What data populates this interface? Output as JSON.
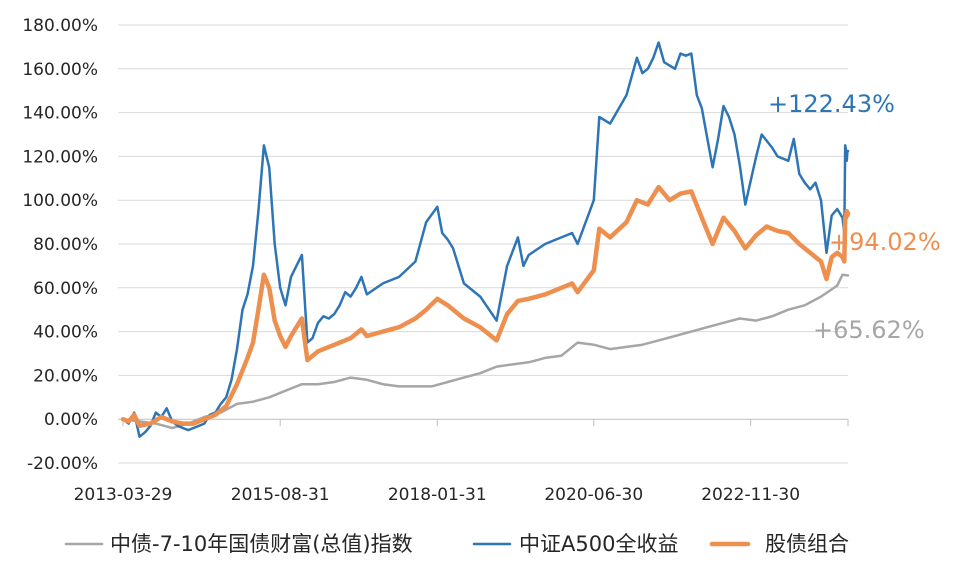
{
  "chart_data": {
    "type": "line",
    "title": "",
    "xlabel": "",
    "ylabel": "",
    "ylim": [
      -20,
      180
    ],
    "xlim": [
      "2013-03-01",
      "2024-05-31"
    ],
    "grid": "horizontal",
    "legend_position": "bottom",
    "yticks": [
      -20,
      0,
      20,
      40,
      60,
      80,
      100,
      120,
      140,
      160,
      180
    ],
    "ytick_labels": [
      "-20.00%",
      "0.00%",
      "20.00%",
      "40.00%",
      "60.00%",
      "80.00%",
      "100.00%",
      "120.00%",
      "140.00%",
      "160.00%",
      "180.00%"
    ],
    "xticks": [
      "2013-03-29",
      "2015-08-31",
      "2018-01-31",
      "2020-06-30",
      "2022-11-30"
    ],
    "series": [
      {
        "name": "中债-7-10年国债财富(总值)指数",
        "color": "#a6a6a6",
        "end_label": "+65.62%",
        "points": [
          [
            "2013-03-29",
            0
          ],
          [
            "2013-06-30",
            -1
          ],
          [
            "2013-09-30",
            -2
          ],
          [
            "2013-12-31",
            -4
          ],
          [
            "2014-03-31",
            -2
          ],
          [
            "2014-06-30",
            1
          ],
          [
            "2014-09-30",
            3
          ],
          [
            "2014-12-31",
            7
          ],
          [
            "2015-03-31",
            8
          ],
          [
            "2015-06-30",
            10
          ],
          [
            "2015-09-30",
            13
          ],
          [
            "2015-12-31",
            16
          ],
          [
            "2016-03-31",
            16
          ],
          [
            "2016-06-30",
            17
          ],
          [
            "2016-09-30",
            19
          ],
          [
            "2016-12-31",
            18
          ],
          [
            "2017-03-31",
            16
          ],
          [
            "2017-06-30",
            15
          ],
          [
            "2017-09-30",
            15
          ],
          [
            "2017-12-31",
            15
          ],
          [
            "2018-03-31",
            17
          ],
          [
            "2018-06-30",
            19
          ],
          [
            "2018-09-30",
            21
          ],
          [
            "2018-12-31",
            24
          ],
          [
            "2019-03-31",
            25
          ],
          [
            "2019-06-30",
            26
          ],
          [
            "2019-09-30",
            28
          ],
          [
            "2019-12-31",
            29
          ],
          [
            "2020-03-31",
            35
          ],
          [
            "2020-06-30",
            34
          ],
          [
            "2020-09-30",
            32
          ],
          [
            "2020-12-31",
            33
          ],
          [
            "2021-03-31",
            34
          ],
          [
            "2021-06-30",
            36
          ],
          [
            "2021-09-30",
            38
          ],
          [
            "2021-12-31",
            40
          ],
          [
            "2022-03-31",
            42
          ],
          [
            "2022-06-30",
            44
          ],
          [
            "2022-09-30",
            46
          ],
          [
            "2022-12-31",
            45
          ],
          [
            "2023-03-31",
            47
          ],
          [
            "2023-06-30",
            50
          ],
          [
            "2023-09-30",
            52
          ],
          [
            "2023-12-31",
            56
          ],
          [
            "2024-03-31",
            61
          ],
          [
            "2024-04-30",
            66
          ],
          [
            "2024-05-31",
            65.62
          ]
        ]
      },
      {
        "name": "中证A500全收益",
        "color": "#2e75b6",
        "end_label": "+122.43%",
        "points": [
          [
            "2013-03-29",
            0
          ],
          [
            "2013-04-30",
            -2
          ],
          [
            "2013-05-31",
            3
          ],
          [
            "2013-06-30",
            -8
          ],
          [
            "2013-07-31",
            -6
          ],
          [
            "2013-08-31",
            -3
          ],
          [
            "2013-09-30",
            3
          ],
          [
            "2013-10-31",
            1
          ],
          [
            "2013-11-30",
            5
          ],
          [
            "2013-12-31",
            -1
          ],
          [
            "2014-01-31",
            -3
          ],
          [
            "2014-02-28",
            -4
          ],
          [
            "2014-03-31",
            -5
          ],
          [
            "2014-04-30",
            -4
          ],
          [
            "2014-05-31",
            -3
          ],
          [
            "2014-06-30",
            -2
          ],
          [
            "2014-07-31",
            2
          ],
          [
            "2014-08-31",
            3
          ],
          [
            "2014-09-30",
            7
          ],
          [
            "2014-10-31",
            10
          ],
          [
            "2014-11-30",
            18
          ],
          [
            "2014-12-31",
            32
          ],
          [
            "2015-01-31",
            50
          ],
          [
            "2015-02-28",
            57
          ],
          [
            "2015-03-31",
            70
          ],
          [
            "2015-04-30",
            95
          ],
          [
            "2015-05-31",
            125
          ],
          [
            "2015-06-30",
            115
          ],
          [
            "2015-07-31",
            80
          ],
          [
            "2015-08-31",
            60
          ],
          [
            "2015-09-30",
            52
          ],
          [
            "2015-10-31",
            65
          ],
          [
            "2015-11-30",
            70
          ],
          [
            "2015-12-31",
            75
          ],
          [
            "2016-01-31",
            35
          ],
          [
            "2016-02-29",
            37
          ],
          [
            "2016-03-31",
            44
          ],
          [
            "2016-04-30",
            47
          ],
          [
            "2016-05-31",
            46
          ],
          [
            "2016-06-30",
            48
          ],
          [
            "2016-07-31",
            52
          ],
          [
            "2016-08-31",
            58
          ],
          [
            "2016-09-30",
            56
          ],
          [
            "2016-10-31",
            60
          ],
          [
            "2016-11-30",
            65
          ],
          [
            "2016-12-31",
            57
          ],
          [
            "2017-03-31",
            62
          ],
          [
            "2017-06-30",
            65
          ],
          [
            "2017-09-30",
            72
          ],
          [
            "2017-11-30",
            90
          ],
          [
            "2018-01-31",
            97
          ],
          [
            "2018-02-28",
            85
          ],
          [
            "2018-03-31",
            82
          ],
          [
            "2018-04-30",
            78
          ],
          [
            "2018-06-30",
            62
          ],
          [
            "2018-09-30",
            56
          ],
          [
            "2018-12-31",
            45
          ],
          [
            "2019-02-28",
            70
          ],
          [
            "2019-04-30",
            83
          ],
          [
            "2019-05-31",
            70
          ],
          [
            "2019-06-30",
            75
          ],
          [
            "2019-09-30",
            80
          ],
          [
            "2019-12-31",
            83
          ],
          [
            "2020-02-29",
            85
          ],
          [
            "2020-03-31",
            80
          ],
          [
            "2020-06-30",
            100
          ],
          [
            "2020-07-31",
            138
          ],
          [
            "2020-09-30",
            135
          ],
          [
            "2020-12-31",
            148
          ],
          [
            "2021-02-28",
            165
          ],
          [
            "2021-03-31",
            158
          ],
          [
            "2021-04-30",
            160
          ],
          [
            "2021-05-31",
            165
          ],
          [
            "2021-06-30",
            172
          ],
          [
            "2021-07-31",
            163
          ],
          [
            "2021-09-30",
            160
          ],
          [
            "2021-10-31",
            167
          ],
          [
            "2021-11-30",
            166
          ],
          [
            "2021-12-31",
            167
          ],
          [
            "2022-01-31",
            148
          ],
          [
            "2022-02-28",
            142
          ],
          [
            "2022-04-30",
            115
          ],
          [
            "2022-05-31",
            128
          ],
          [
            "2022-06-30",
            143
          ],
          [
            "2022-07-31",
            138
          ],
          [
            "2022-08-31",
            130
          ],
          [
            "2022-09-30",
            116
          ],
          [
            "2022-10-31",
            98
          ],
          [
            "2022-12-31",
            120
          ],
          [
            "2023-01-31",
            130
          ],
          [
            "2023-03-31",
            124
          ],
          [
            "2023-04-30",
            120
          ],
          [
            "2023-06-30",
            118
          ],
          [
            "2023-07-31",
            128
          ],
          [
            "2023-08-31",
            112
          ],
          [
            "2023-09-30",
            108
          ],
          [
            "2023-10-31",
            105
          ],
          [
            "2023-11-30",
            108
          ],
          [
            "2023-12-31",
            100
          ],
          [
            "2024-01-31",
            76
          ],
          [
            "2024-02-29",
            93
          ],
          [
            "2024-03-31",
            96
          ],
          [
            "2024-04-30",
            92
          ],
          [
            "2024-05-10",
            85
          ],
          [
            "2024-05-15",
            125
          ],
          [
            "2024-05-20",
            123
          ],
          [
            "2024-05-24",
            118
          ],
          [
            "2024-05-27",
            122
          ],
          [
            "2024-05-31",
            122.43
          ]
        ]
      },
      {
        "name": "股债组合",
        "color": "#ed8f4e",
        "end_label": "+94.02%",
        "points": [
          [
            "2013-03-29",
            0
          ],
          [
            "2013-04-30",
            -1
          ],
          [
            "2013-05-31",
            2
          ],
          [
            "2013-06-30",
            -3
          ],
          [
            "2013-08-31",
            -2
          ],
          [
            "2013-10-31",
            1
          ],
          [
            "2013-12-31",
            -1
          ],
          [
            "2014-02-28",
            -2
          ],
          [
            "2014-04-30",
            -2
          ],
          [
            "2014-06-30",
            0
          ],
          [
            "2014-08-31",
            2
          ],
          [
            "2014-10-31",
            6
          ],
          [
            "2014-12-31",
            16
          ],
          [
            "2015-02-28",
            28
          ],
          [
            "2015-03-31",
            35
          ],
          [
            "2015-04-30",
            50
          ],
          [
            "2015-05-31",
            66
          ],
          [
            "2015-06-30",
            60
          ],
          [
            "2015-07-31",
            45
          ],
          [
            "2015-08-31",
            38
          ],
          [
            "2015-09-30",
            33
          ],
          [
            "2015-10-31",
            38
          ],
          [
            "2015-11-30",
            42
          ],
          [
            "2015-12-31",
            46
          ],
          [
            "2016-01-31",
            27
          ],
          [
            "2016-03-31",
            31
          ],
          [
            "2016-05-31",
            33
          ],
          [
            "2016-07-31",
            35
          ],
          [
            "2016-09-30",
            37
          ],
          [
            "2016-10-31",
            39
          ],
          [
            "2016-11-30",
            41
          ],
          [
            "2016-12-31",
            38
          ],
          [
            "2017-03-31",
            40
          ],
          [
            "2017-06-30",
            42
          ],
          [
            "2017-09-30",
            46
          ],
          [
            "2017-11-30",
            50
          ],
          [
            "2018-01-31",
            55
          ],
          [
            "2018-03-31",
            52
          ],
          [
            "2018-06-30",
            46
          ],
          [
            "2018-09-30",
            42
          ],
          [
            "2018-12-31",
            36
          ],
          [
            "2019-02-28",
            48
          ],
          [
            "2019-04-30",
            54
          ],
          [
            "2019-06-30",
            55
          ],
          [
            "2019-09-30",
            57
          ],
          [
            "2019-12-31",
            60
          ],
          [
            "2020-02-29",
            62
          ],
          [
            "2020-03-31",
            58
          ],
          [
            "2020-06-30",
            68
          ],
          [
            "2020-07-31",
            87
          ],
          [
            "2020-09-30",
            83
          ],
          [
            "2020-12-31",
            90
          ],
          [
            "2021-02-28",
            100
          ],
          [
            "2021-04-30",
            98
          ],
          [
            "2021-06-30",
            106
          ],
          [
            "2021-08-31",
            100
          ],
          [
            "2021-10-31",
            103
          ],
          [
            "2021-12-31",
            104
          ],
          [
            "2022-02-28",
            92
          ],
          [
            "2022-04-30",
            80
          ],
          [
            "2022-06-30",
            92
          ],
          [
            "2022-08-31",
            86
          ],
          [
            "2022-10-31",
            78
          ],
          [
            "2022-12-31",
            84
          ],
          [
            "2023-02-28",
            88
          ],
          [
            "2023-04-30",
            86
          ],
          [
            "2023-06-30",
            85
          ],
          [
            "2023-08-31",
            80
          ],
          [
            "2023-10-31",
            76
          ],
          [
            "2023-12-31",
            72
          ],
          [
            "2024-01-31",
            64
          ],
          [
            "2024-02-29",
            74
          ],
          [
            "2024-03-31",
            76
          ],
          [
            "2024-04-30",
            74
          ],
          [
            "2024-05-10",
            72
          ],
          [
            "2024-05-15",
            92
          ],
          [
            "2024-05-20",
            92
          ],
          [
            "2024-05-24",
            95
          ],
          [
            "2024-05-27",
            93
          ],
          [
            "2024-05-31",
            94.02
          ]
        ]
      }
    ]
  }
}
